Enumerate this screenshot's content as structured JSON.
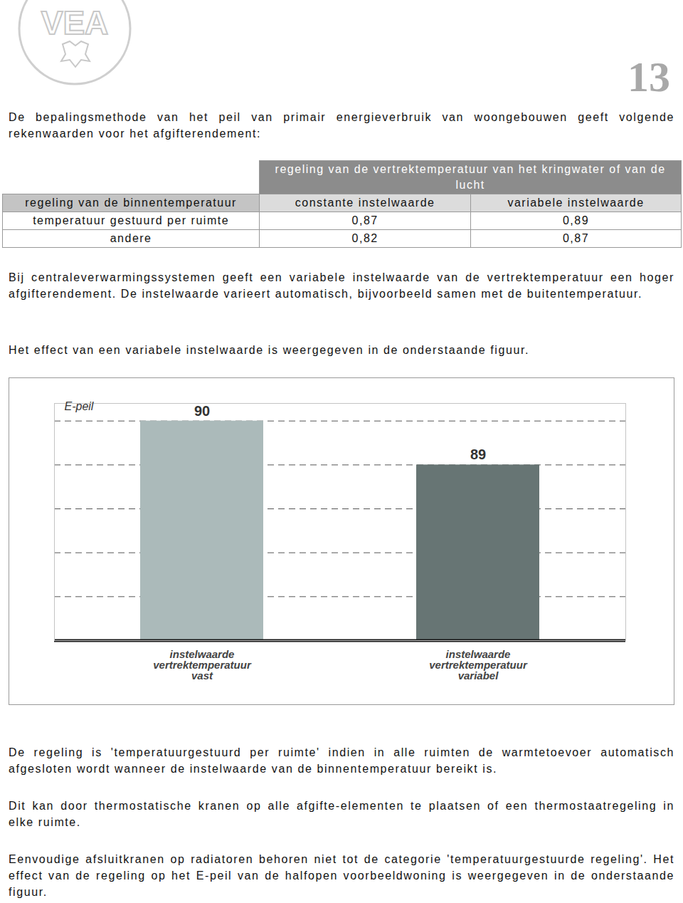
{
  "header": {
    "logo": "VEA",
    "page_number": "13"
  },
  "paragraphs_before_table": [
    "De bepalingsmethode van het peil van primair energieverbruik van woongebouwen geeft volgende rekenwaarden voor het afgifterendement:"
  ],
  "table": {
    "header": "regeling van de vertrektemperatuur van het kringwater of van de lucht",
    "columns": [
      "regeling van de binnentemperatuur",
      "constante instelwaarde",
      "variabele instelwaarde"
    ],
    "rows": [
      [
        "temperatuur gestuurd per ruimte",
        "0,87",
        "0,89"
      ],
      [
        "andere",
        "0,82",
        "0,87"
      ]
    ]
  },
  "paragraphs_middle": [
    "Bij centraleverwarmingssystemen geeft een variabele instelwaarde van de vertrektemperatuur een hoger afgifterendement. De instelwaarde varieert automatisch, bijvoorbeeld samen met de buitentemperatuur.",
    "Het effect van een variabele instelwaarde is weergegeven in de onderstaande figuur."
  ],
  "chart_data": {
    "type": "bar",
    "y_label": "E-peil",
    "categories": [
      "instelwaarde vertrektemperatuur vast",
      "instelwaarde vertrektemperatuur variabel"
    ],
    "values": [
      90,
      89
    ],
    "colors": [
      "#abbaba",
      "#677574"
    ],
    "ylim": [
      85,
      90.4
    ],
    "yticks": [
      85,
      86,
      87,
      88,
      89,
      90
    ],
    "grid": true,
    "data_labels": true,
    "tick_labels": "x"
  },
  "paragraphs_after": [
    "De regeling is 'temperatuurgestuurd per ruimte' indien in alle ruimten de warmtetoevoer automatisch afgesloten wordt wanneer de instelwaarde van de binnentemperatuur bereikt is.",
    "Dit kan door thermostatische kranen op alle afgifte-elementen te plaatsen of een thermostaatregeling in elke ruimte.",
    "Eenvoudige afsluitkranen op radiatoren behoren niet tot de categorie 'temperatuurgestuurde regeling'. Het effect van de regeling op het E-peil van de halfopen voorbeeldwoning is weergegeven in de onderstaande figuur."
  ]
}
